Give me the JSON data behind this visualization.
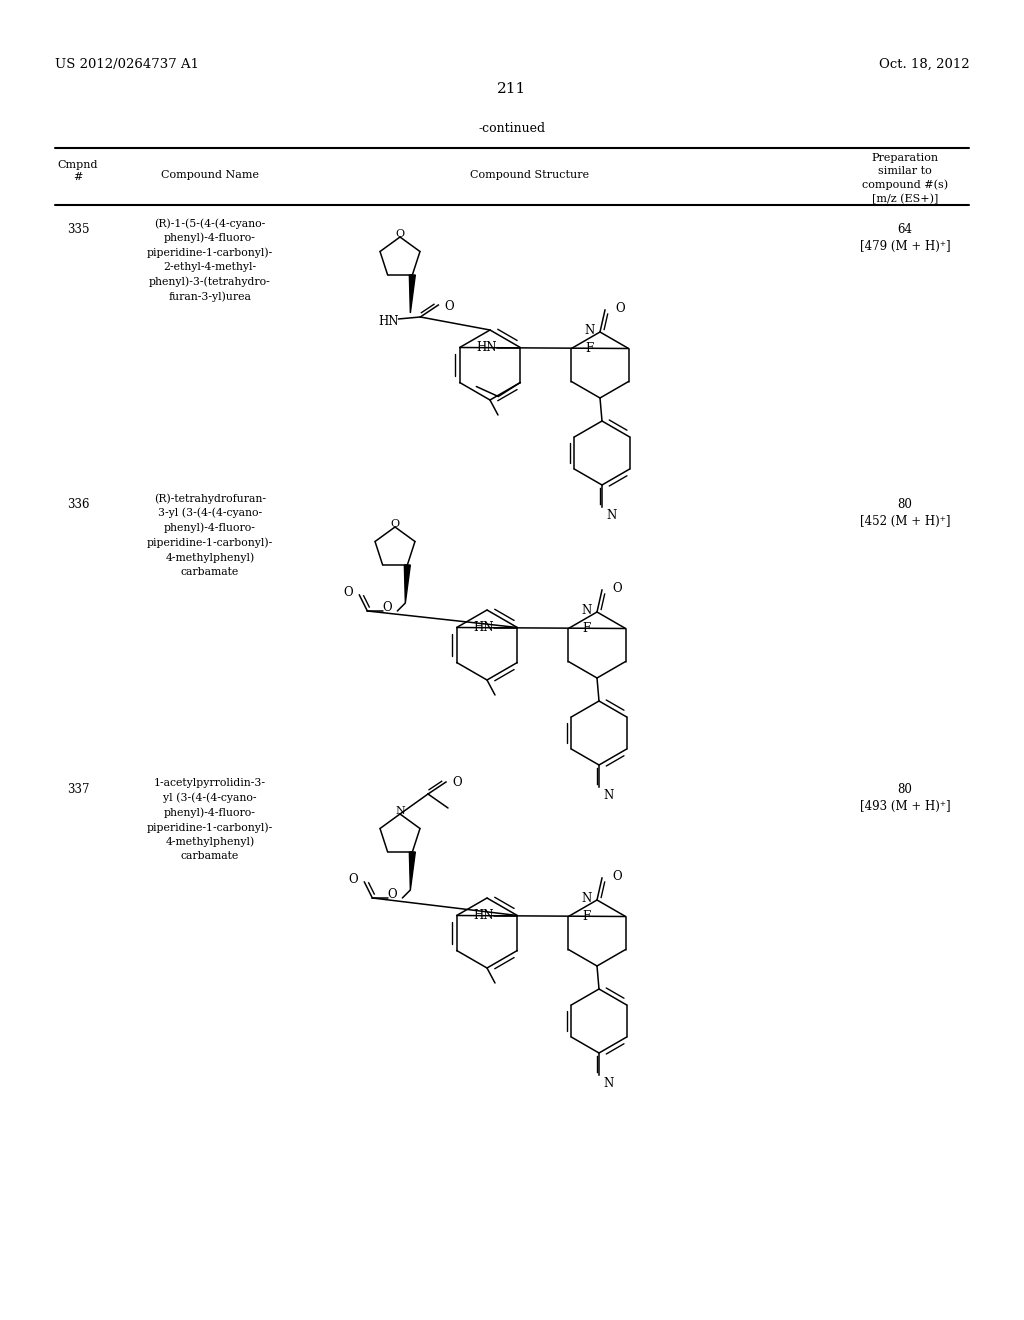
{
  "patent_number": "US 2012/0264737 A1",
  "patent_date": "Oct. 18, 2012",
  "page_number": "211",
  "continued_label": "-continued",
  "col_header_cmpnd1": "Cmpnd",
  "col_header_cmpnd2": "#",
  "col_header_name": "Compound Name",
  "col_header_struct": "Compound Structure",
  "col_header_prep": "Preparation\nsimilar to\ncompound #(s)\n[m/z (ES+)]",
  "compounds": [
    {
      "id": "335",
      "name": "(R)-1-(5-(4-(4-cyano-\nphenyl)-4-fluoro-\npiperidine-1-carbonyl)-\n2-ethyl-4-methyl-\nphenyl)-3-(tetrahydro-\nfuran-3-yl)urea",
      "prep_line1": "64",
      "prep_line2": "[479 (M + H)⁺]"
    },
    {
      "id": "336",
      "name": "(R)-tetrahydrofuran-\n3-yl (3-(4-(4-cyano-\nphenyl)-4-fluoro-\npiperidine-1-carbonyl)-\n4-methylphenyl)\ncarbamate",
      "prep_line1": "80",
      "prep_line2": "[452 (M + H)⁺]"
    },
    {
      "id": "337",
      "name": "1-acetylpyrrolidin-3-\nyl (3-(4-(4-cyano-\nphenyl)-4-fluoro-\npiperidine-1-carbonyl)-\n4-methylphenyl)\ncarbamate",
      "prep_line1": "80",
      "prep_line2": "[493 (M + H)⁺]"
    }
  ],
  "row_tops": [
    215,
    490,
    775
  ],
  "bg_color": "#ffffff"
}
